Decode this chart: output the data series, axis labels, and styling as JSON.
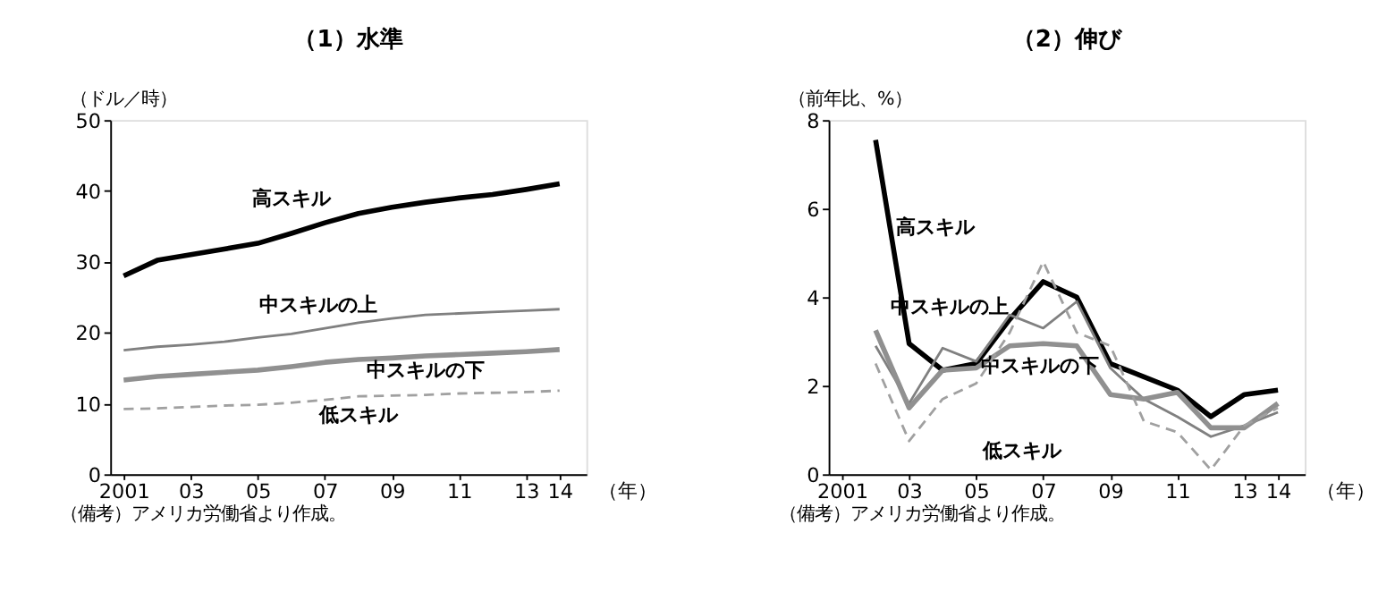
{
  "chart_data": [
    {
      "type": "line",
      "title": "（1）水準",
      "ylabel": "（ドル／時）",
      "xlabel": "（年）",
      "x": [
        2001,
        2002,
        2003,
        2004,
        2005,
        2006,
        2007,
        2008,
        2009,
        2010,
        2011,
        2012,
        2013,
        2014
      ],
      "series": [
        {
          "name": "高スキル",
          "color": "#000000",
          "line_style": "solid",
          "values": [
            28,
            30.2,
            31,
            31.8,
            32.6,
            34,
            35.5,
            36.8,
            37.7,
            38.4,
            39,
            39.5,
            40.2,
            41
          ]
        },
        {
          "name": "中スキルの上",
          "color": "#808080",
          "line_style": "solid",
          "values": [
            17.5,
            18,
            18.3,
            18.7,
            19.3,
            19.8,
            20.6,
            21.4,
            22,
            22.5,
            22.7,
            22.9,
            23.1,
            23.3
          ]
        },
        {
          "name": "中スキルの下",
          "color": "#909090",
          "line_style": "solid",
          "values": [
            13.3,
            13.8,
            14.1,
            14.4,
            14.7,
            15.2,
            15.8,
            16.2,
            16.4,
            16.7,
            16.9,
            17.1,
            17.3,
            17.6
          ]
        },
        {
          "name": "低スキル",
          "color": "#a0a0a0",
          "line_style": "dashed",
          "values": [
            9.2,
            9.3,
            9.5,
            9.7,
            9.8,
            10.1,
            10.5,
            11,
            11.1,
            11.2,
            11.4,
            11.5,
            11.6,
            11.8
          ]
        }
      ],
      "xlim": [
        2000.6,
        2014.8
      ],
      "ylim": [
        0,
        50
      ],
      "yticks": [
        0,
        10,
        20,
        30,
        40,
        50
      ],
      "xticks": [
        2001,
        {
          "value": 2003,
          "label": "03"
        },
        {
          "value": 2005,
          "label": "05"
        },
        {
          "value": 2007,
          "label": "07"
        },
        {
          "value": 2009,
          "label": "09"
        },
        {
          "value": 2011,
          "label": "11"
        },
        {
          "value": 2013,
          "label": "13"
        },
        {
          "value": 2014,
          "label": "14"
        }
      ],
      "grid": false,
      "marker": "none",
      "annotations": [
        "（備考）アメリカ労働省より作成。"
      ]
    },
    {
      "type": "line",
      "title": "（2）伸び",
      "ylabel": "（前年比、%）",
      "xlabel": "（年）",
      "x": [
        2002,
        2003,
        2004,
        2005,
        2006,
        2007,
        2008,
        2009,
        2010,
        2011,
        2012,
        2013,
        2014
      ],
      "series": [
        {
          "name": "高スキル",
          "color": "#000000",
          "line_style": "solid",
          "values": [
            7.55,
            2.95,
            2.35,
            2.5,
            3.5,
            4.35,
            4.0,
            2.5,
            2.2,
            1.9,
            1.3,
            1.8,
            1.9
          ]
        },
        {
          "name": "中スキルの上",
          "color": "#808080",
          "line_style": "solid",
          "values": [
            2.9,
            1.6,
            2.85,
            2.55,
            3.6,
            3.3,
            3.9,
            2.4,
            1.7,
            1.3,
            0.85,
            1.1,
            1.4
          ]
        },
        {
          "name": "中スキルの下",
          "color": "#909090",
          "line_style": "solid",
          "values": [
            3.25,
            1.5,
            2.35,
            2.4,
            2.9,
            2.95,
            2.9,
            1.8,
            1.7,
            1.85,
            1.05,
            1.05,
            1.6
          ]
        },
        {
          "name": "低スキル",
          "color": "#a0a0a0",
          "line_style": "dashed",
          "values": [
            2.5,
            0.75,
            1.7,
            2.05,
            3.2,
            4.8,
            3.2,
            2.9,
            1.2,
            0.95,
            0.1,
            1.1,
            1.5
          ]
        }
      ],
      "xlim": [
        2000.6,
        2014.8
      ],
      "ylim": [
        0,
        8
      ],
      "yticks": [
        0,
        2,
        4,
        6,
        8
      ],
      "xticks": [
        2001,
        {
          "value": 2003,
          "label": "03"
        },
        {
          "value": 2005,
          "label": "05"
        },
        {
          "value": 2007,
          "label": "07"
        },
        {
          "value": 2009,
          "label": "09"
        },
        {
          "value": 2011,
          "label": "11"
        },
        {
          "value": 2013,
          "label": "13"
        },
        {
          "value": 2014,
          "label": "14"
        }
      ],
      "grid": false,
      "marker": "none",
      "annotations": [
        "（備考）アメリカ労働省より作成。"
      ]
    }
  ]
}
